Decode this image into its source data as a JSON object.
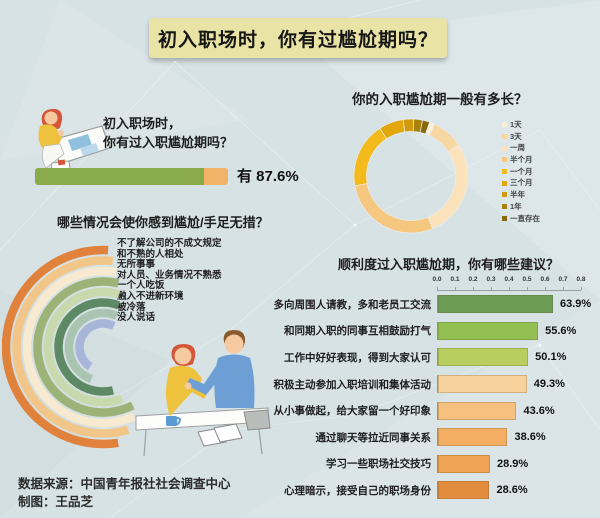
{
  "page": {
    "title": "初入职场时，你有过尴尬期吗？",
    "source": "数据来源：中国青年报社社会调查中心",
    "credit": "制图：王品芝"
  },
  "colors": {
    "background": "#d7e2e5",
    "banner_bg": "#e9e3a5",
    "entry_yes": "#8aab4c",
    "entry_no": "#f2b268"
  },
  "chart_data": [
    {
      "id": "entry-bar",
      "type": "bar",
      "title_lines": [
        "初入职场时，",
        "你有过入职尴尬期吗？"
      ],
      "answer_text": "有 87.6%",
      "value": 87.6,
      "colors": {
        "yes": "#8aab4c",
        "no": "#f2b268"
      }
    },
    {
      "id": "duration-donut",
      "type": "pie",
      "title": "你的入职尴尬期一般有多长？",
      "labels": [
        "1天",
        "3天",
        "一周",
        "半个月",
        "一个月",
        "三个月",
        "半年",
        "1年",
        "一直存在"
      ],
      "values": [
        1.5,
        9,
        28,
        28.5,
        18.5,
        7,
        3,
        2.5,
        2
      ],
      "colors": [
        "#f8efd9",
        "#f7d7a2",
        "#fbe2ba",
        "#f6c87f",
        "#f4b91a",
        "#e3a70d",
        "#cf9a0b",
        "#a8820d",
        "#86690c"
      ],
      "start_angle_deg": 19,
      "legend_position": "right"
    },
    {
      "id": "situations-radial",
      "type": "bar",
      "variant": "radial-arcs",
      "title": "哪些情况会使你感到尴尬/手足无措？",
      "categories": [
        "不了解公司的不成文规定",
        "和不熟的人相处",
        "无所事事",
        "对人员、业务情况不熟悉",
        "一个人吃饭",
        "融入不进新环境",
        "被冷落",
        "没人说话"
      ],
      "sweep_deg": [
        189,
        197,
        204,
        207,
        200,
        193,
        160,
        147
      ],
      "start_deg": [
        -3,
        -6.5,
        -10,
        -13.5,
        -17,
        -20.5,
        -24,
        -27.5
      ],
      "colors": [
        "#e0813c",
        "#f2c689",
        "#f7ead0",
        "#9cb377",
        "#c8d9ae",
        "#5d8a65",
        "#a9c4b0",
        "#a7b6d8"
      ]
    },
    {
      "id": "suggestions-bar",
      "type": "bar",
      "orientation": "horizontal",
      "title": "顺利度过入职尴尬期，你有哪些建议？",
      "categories": [
        "多向周围人请教，多和老员工交流",
        "和同期入职的同事互相鼓励打气",
        "工作中好好表现，得到大家认可",
        "积极主动参加入职培训和集体活动",
        "从小事做起，给大家留一个好印象",
        "通过聊天等拉近同事关系",
        "学习一些职场社交技巧",
        "心理暗示，接受自己的职场身份"
      ],
      "values": [
        63.9,
        55.6,
        50.1,
        49.3,
        43.6,
        38.6,
        28.9,
        28.6
      ],
      "value_labels": [
        "63.9%",
        "55.6%",
        "50.1%",
        "49.3%",
        "43.6%",
        "38.6%",
        "28.9%",
        "28.6%"
      ],
      "axis_ticks": [
        "0.0",
        "0.1",
        "0.2",
        "0.3",
        "0.4",
        "0.5",
        "0.6",
        "0.7",
        "0.8"
      ],
      "xlim": [
        0,
        0.8
      ],
      "colors": [
        "#6d9d55",
        "#93bf52",
        "#b8cf60",
        "#f8d29c",
        "#f6c17e",
        "#f3ae63",
        "#efa355",
        "#e28c3d"
      ]
    }
  ]
}
